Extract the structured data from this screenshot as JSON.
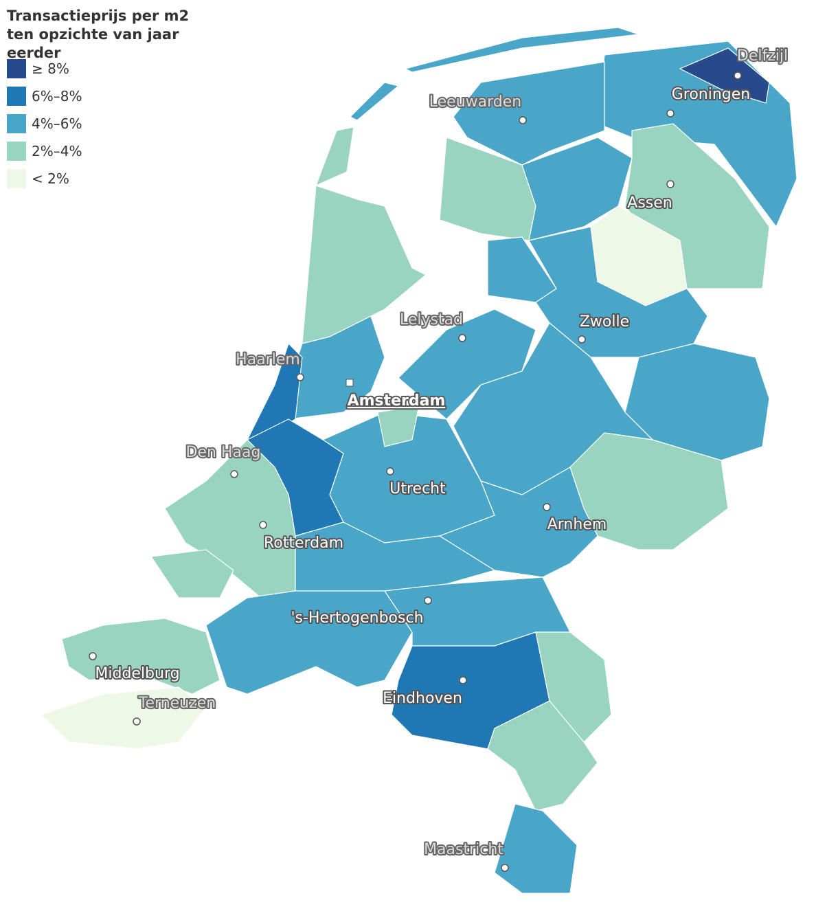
{
  "title": "Transactieprijs per m2 ten opzichte van jaar eerder",
  "legend": [
    {
      "label": "≥ 8%",
      "color": "#264a8c"
    },
    {
      "label": "6%–8%",
      "color": "#1f78b4"
    },
    {
      "label": "4%–6%",
      "color": "#4aa6c8"
    },
    {
      "label": "2%–4%",
      "color": "#98d4bf"
    },
    {
      "label": "< 2%",
      "color": "#eef8e6"
    }
  ],
  "cities": [
    "Delfzijl",
    "Groningen",
    "Leeuwarden",
    "Assen",
    "Lelystad",
    "Zwolle",
    "Haarlem",
    "Amsterdam",
    "Den Haag",
    "Utrecht",
    "Rotterdam",
    "Arnhem",
    "'s-Hertogenbosch",
    "Middelburg",
    "Terneuzen",
    "Eindhoven",
    "Maastricht"
  ]
}
